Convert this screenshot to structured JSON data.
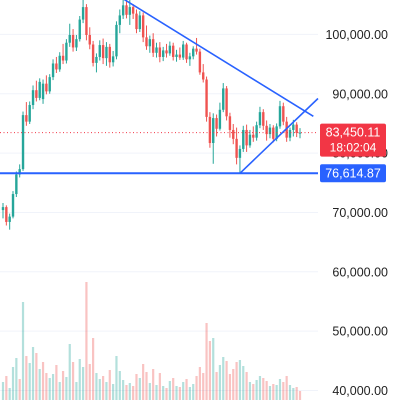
{
  "chart_data": {
    "type": "candlestick",
    "title": "",
    "xlabel": "",
    "ylabel": "",
    "ylim": [
      38500,
      106000
    ],
    "y_ticks": [
      {
        "value": 100000,
        "label": "100,000.00"
      },
      {
        "value": 90000,
        "label": "90,000.00"
      },
      {
        "value": 80000,
        "label": "80,000.00"
      },
      {
        "value": 70000,
        "label": "70,000.00"
      },
      {
        "value": 60000,
        "label": "60,000.00"
      },
      {
        "value": 50000,
        "label": "50,000.00"
      },
      {
        "value": 40000,
        "label": "40,000.00"
      }
    ],
    "current_price": {
      "value": 83450.11,
      "label": "83,450.11",
      "countdown": "18:02:04",
      "color": "#f23645"
    },
    "support_level": {
      "value": 76614.87,
      "label": "76,614.87",
      "color": "#2962ff"
    },
    "colors": {
      "up": "#26a69a",
      "down": "#ef5350",
      "trendline": "#2962ff"
    },
    "candles": [
      [
        0,
        70400,
        71600,
        69000,
        70900
      ],
      [
        1,
        70900,
        71200,
        67800,
        68400
      ],
      [
        2,
        68400,
        69800,
        67100,
        69300
      ],
      [
        3,
        69300,
        73600,
        69000,
        73100
      ],
      [
        4,
        73100,
        76900,
        72600,
        76400
      ],
      [
        5,
        76400,
        78100,
        75900,
        77300
      ],
      [
        6,
        77300,
        87000,
        77000,
        86400
      ],
      [
        7,
        86400,
        88600,
        84600,
        85300
      ],
      [
        8,
        85300,
        88700,
        84900,
        88100
      ],
      [
        9,
        88100,
        91400,
        87400,
        90600
      ],
      [
        10,
        90600,
        92200,
        88700,
        89300
      ],
      [
        11,
        89300,
        92600,
        88900,
        92000
      ],
      [
        12,
        89100,
        92400,
        88300,
        91700
      ],
      [
        13,
        91700,
        93100,
        89900,
        90400
      ],
      [
        14,
        90400,
        93300,
        90000,
        92800
      ],
      [
        15,
        92800,
        95800,
        92300,
        95100
      ],
      [
        16,
        95100,
        96200,
        93500,
        94100
      ],
      [
        17,
        94100,
        97000,
        93700,
        96400
      ],
      [
        18,
        96400,
        98400,
        95000,
        95600
      ],
      [
        19,
        95600,
        99200,
        95100,
        98600
      ],
      [
        20,
        98600,
        101800,
        97900,
        99900
      ],
      [
        21,
        99900,
        100900,
        97100,
        97800
      ],
      [
        22,
        97800,
        99900,
        97200,
        99200
      ],
      [
        23,
        99200,
        103100,
        98800,
        102500
      ],
      [
        24,
        102500,
        106000,
        101900,
        104600
      ],
      [
        25,
        104600,
        105100,
        99000,
        99900
      ],
      [
        26,
        99900,
        101200,
        97500,
        98300
      ],
      [
        27,
        98300,
        98900,
        94600,
        95200
      ],
      [
        28,
        95200,
        96800,
        93600,
        96200
      ],
      [
        29,
        96200,
        99000,
        95600,
        98200
      ],
      [
        30,
        98200,
        99300,
        95000,
        96000
      ],
      [
        31,
        96000,
        98700,
        94700,
        97900
      ],
      [
        32,
        97900,
        98400,
        94400,
        95300
      ],
      [
        33,
        95300,
        97200,
        94600,
        96300
      ],
      [
        34,
        96300,
        102200,
        95800,
        101600
      ],
      [
        35,
        101600,
        104200,
        100200,
        103200
      ],
      [
        36,
        103200,
        106000,
        102600,
        104900
      ],
      [
        37,
        104900,
        106000,
        102700,
        103300
      ],
      [
        38,
        103300,
        105900,
        101600,
        104600
      ],
      [
        39,
        104600,
        105100,
        102600,
        103500
      ],
      [
        40,
        103500,
        104200,
        100200,
        100900
      ],
      [
        41,
        100900,
        103900,
        100400,
        103200
      ],
      [
        42,
        103200,
        103700,
        98700,
        99500
      ],
      [
        43,
        99500,
        101500,
        97400,
        98000
      ],
      [
        44,
        98000,
        99800,
        96900,
        99200
      ],
      [
        45,
        99200,
        100200,
        96200,
        96900
      ],
      [
        46,
        96900,
        98600,
        96100,
        97800
      ],
      [
        47,
        97800,
        98700,
        95300,
        96200
      ],
      [
        48,
        96200,
        97900,
        95500,
        97300
      ],
      [
        49,
        97300,
        98400,
        96100,
        96800
      ],
      [
        50,
        96800,
        98800,
        96400,
        98100
      ],
      [
        51,
        98100,
        98600,
        95600,
        96200
      ],
      [
        52,
        96200,
        97400,
        95400,
        96600
      ],
      [
        53,
        96600,
        97800,
        95700,
        96100
      ],
      [
        54,
        96100,
        98900,
        95700,
        98300
      ],
      [
        55,
        98300,
        98600,
        95200,
        95800
      ],
      [
        56,
        95800,
        96900,
        94700,
        96300
      ],
      [
        57,
        96300,
        98000,
        95800,
        97600
      ],
      [
        58,
        97600,
        99400,
        96600,
        97100
      ],
      [
        59,
        97100,
        97600,
        93200,
        93600
      ],
      [
        60,
        93600,
        95000,
        91900,
        92400
      ],
      [
        61,
        92400,
        92900,
        85300,
        86100
      ],
      [
        62,
        86100,
        86900,
        80900,
        81700
      ],
      [
        63,
        81700,
        86700,
        78200,
        85900
      ],
      [
        64,
        85900,
        86500,
        82800,
        84100
      ],
      [
        65,
        84100,
        88500,
        83800,
        87300
      ],
      [
        66,
        87300,
        91800,
        86900,
        90900
      ],
      [
        67,
        90900,
        91300,
        85500,
        86200
      ],
      [
        68,
        86200,
        86800,
        82600,
        83900
      ],
      [
        69,
        83900,
        84900,
        81500,
        82400
      ],
      [
        70,
        82400,
        84300,
        78100,
        79200
      ],
      [
        71,
        79200,
        81300,
        76600,
        80700
      ],
      [
        72,
        80700,
        84600,
        80200,
        83900
      ],
      [
        73,
        83900,
        84800,
        80200,
        81300
      ],
      [
        74,
        81300,
        83900,
        80900,
        83100
      ],
      [
        75,
        83100,
        84500,
        81900,
        82600
      ],
      [
        76,
        82600,
        85300,
        82100,
        84700
      ],
      [
        77,
        84700,
        87800,
        84200,
        86900
      ],
      [
        78,
        86900,
        87400,
        83900,
        84600
      ],
      [
        79,
        84600,
        85500,
        82100,
        83200
      ],
      [
        80,
        83200,
        84900,
        82500,
        84300
      ],
      [
        81,
        84300,
        84700,
        81800,
        82400
      ],
      [
        82,
        82400,
        85000,
        82000,
        84500
      ],
      [
        83,
        84500,
        88800,
        84100,
        87900
      ],
      [
        84,
        87900,
        88500,
        84700,
        85300
      ],
      [
        85,
        85300,
        86100,
        81900,
        82600
      ],
      [
        86,
        82600,
        84300,
        82000,
        83900
      ],
      [
        87,
        83900,
        85600,
        82800,
        84800
      ],
      [
        88,
        84800,
        85200,
        82700,
        83400
      ],
      [
        89,
        83400,
        84200,
        82500,
        83450.11
      ]
    ],
    "volume": [
      [
        0,
        18,
        "up"
      ],
      [
        1,
        24,
        "down"
      ],
      [
        2,
        12,
        "up"
      ],
      [
        3,
        33,
        "up"
      ],
      [
        4,
        42,
        "up"
      ],
      [
        5,
        21,
        "down"
      ],
      [
        6,
        98,
        "up"
      ],
      [
        7,
        44,
        "down"
      ],
      [
        8,
        37,
        "up"
      ],
      [
        9,
        53,
        "up"
      ],
      [
        10,
        47,
        "down"
      ],
      [
        11,
        31,
        "up"
      ],
      [
        12,
        38,
        "down"
      ],
      [
        13,
        27,
        "down"
      ],
      [
        14,
        22,
        "up"
      ],
      [
        15,
        26,
        "up"
      ],
      [
        16,
        35,
        "down"
      ],
      [
        17,
        18,
        "up"
      ],
      [
        18,
        29,
        "down"
      ],
      [
        19,
        23,
        "up"
      ],
      [
        20,
        56,
        "up"
      ],
      [
        21,
        38,
        "down"
      ],
      [
        22,
        18,
        "up"
      ],
      [
        23,
        41,
        "up"
      ],
      [
        24,
        33,
        "up"
      ],
      [
        25,
        118,
        "down"
      ],
      [
        26,
        36,
        "down"
      ],
      [
        27,
        62,
        "down"
      ],
      [
        28,
        27,
        "up"
      ],
      [
        29,
        21,
        "up"
      ],
      [
        30,
        24,
        "down"
      ],
      [
        31,
        18,
        "up"
      ],
      [
        32,
        30,
        "down"
      ],
      [
        33,
        16,
        "up"
      ],
      [
        34,
        44,
        "up"
      ],
      [
        35,
        29,
        "up"
      ],
      [
        36,
        20,
        "up"
      ],
      [
        37,
        15,
        "down"
      ],
      [
        38,
        17,
        "up"
      ],
      [
        39,
        14,
        "down"
      ],
      [
        40,
        26,
        "down"
      ],
      [
        41,
        22,
        "up"
      ],
      [
        42,
        36,
        "down"
      ],
      [
        43,
        28,
        "down"
      ],
      [
        44,
        17,
        "up"
      ],
      [
        45,
        31,
        "down"
      ],
      [
        46,
        15,
        "up"
      ],
      [
        47,
        27,
        "down"
      ],
      [
        48,
        14,
        "up"
      ],
      [
        49,
        12,
        "down"
      ],
      [
        50,
        19,
        "up"
      ],
      [
        51,
        22,
        "down"
      ],
      [
        52,
        14,
        "up"
      ],
      [
        53,
        13,
        "down"
      ],
      [
        54,
        18,
        "up"
      ],
      [
        55,
        21,
        "down"
      ],
      [
        56,
        13,
        "up"
      ],
      [
        57,
        16,
        "up"
      ],
      [
        58,
        24,
        "down"
      ],
      [
        59,
        33,
        "down"
      ],
      [
        60,
        27,
        "down"
      ],
      [
        61,
        77,
        "down"
      ],
      [
        62,
        59,
        "down"
      ],
      [
        63,
        62,
        "up"
      ],
      [
        64,
        28,
        "down"
      ],
      [
        65,
        35,
        "up"
      ],
      [
        66,
        43,
        "up"
      ],
      [
        67,
        39,
        "down"
      ],
      [
        68,
        26,
        "down"
      ],
      [
        69,
        31,
        "down"
      ],
      [
        70,
        38,
        "down"
      ],
      [
        71,
        40,
        "up"
      ],
      [
        72,
        34,
        "up"
      ],
      [
        73,
        28,
        "down"
      ],
      [
        74,
        18,
        "up"
      ],
      [
        75,
        16,
        "down"
      ],
      [
        76,
        20,
        "up"
      ],
      [
        77,
        24,
        "up"
      ],
      [
        78,
        22,
        "down"
      ],
      [
        79,
        19,
        "down"
      ],
      [
        80,
        14,
        "up"
      ],
      [
        81,
        16,
        "down"
      ],
      [
        82,
        15,
        "up"
      ],
      [
        83,
        21,
        "up"
      ],
      [
        84,
        18,
        "down"
      ],
      [
        85,
        24,
        "down"
      ],
      [
        86,
        15,
        "up"
      ],
      [
        87,
        12,
        "up"
      ],
      [
        88,
        13,
        "down"
      ],
      [
        89,
        9,
        "down"
      ]
    ]
  }
}
